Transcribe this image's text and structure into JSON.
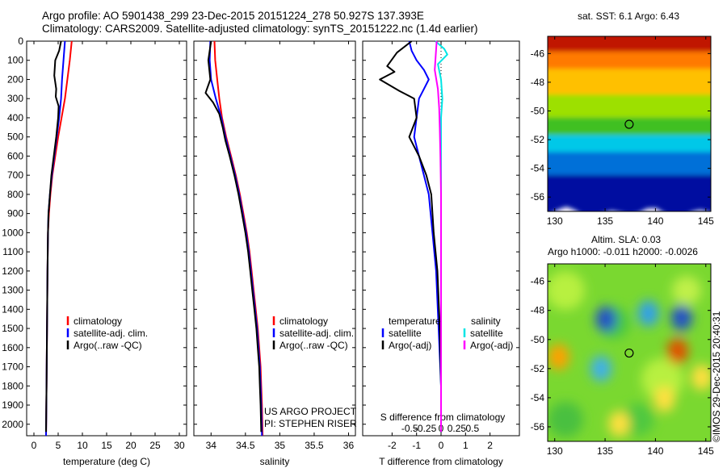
{
  "header": {
    "title_line1": "Argo profile: AO 5901438_299 23-Dec-2015 20151224_278 50.927S 137.393E",
    "title_line2": "Climatology: CARS2009. Satellite-adjusted climatology: synTS_20151222.nc (1.4d earlier)"
  },
  "colors": {
    "climatology": "#ff0000",
    "satellite": "#0000ff",
    "argo": "#000000",
    "salinity_satellite": "#00e5e5",
    "salinity_argo": "#ff00ff"
  },
  "credits": {
    "project": "US ARGO PROJECT",
    "pi": "PI: STEPHEN RISER",
    "stamp": "©IMOS 29-Dec-2015 20:40:31"
  },
  "chart_data": [
    {
      "type": "line",
      "name": "temperature-profile",
      "xlabel": "temperature (deg C)",
      "ylabel": "",
      "xlim": [
        -1.5,
        31.5
      ],
      "ylim": [
        2060,
        0
      ],
      "xticks": [
        0,
        5,
        10,
        15,
        20,
        25,
        30
      ],
      "yticks": [
        0,
        100,
        200,
        300,
        400,
        500,
        600,
        700,
        800,
        900,
        1000,
        1100,
        1200,
        1300,
        1400,
        1500,
        1600,
        1700,
        1800,
        1900,
        2000
      ],
      "legend": {
        "placement": "lower-right",
        "entries": [
          "climatology",
          "satellite-adj. clim.",
          "Argo(..raw -QC)"
        ]
      },
      "series": [
        {
          "name": "climatology",
          "color_key": "climatology",
          "points": [
            [
              7.8,
              0
            ],
            [
              7.4,
              100
            ],
            [
              6.9,
              200
            ],
            [
              6.4,
              300
            ],
            [
              5.7,
              400
            ],
            [
              5.0,
              500
            ],
            [
              4.4,
              600
            ],
            [
              3.8,
              700
            ],
            [
              3.4,
              800
            ],
            [
              3.1,
              900
            ],
            [
              2.9,
              1000
            ],
            [
              2.8,
              1200
            ],
            [
              2.7,
              1500
            ],
            [
              2.6,
              1800
            ],
            [
              2.5,
              2060
            ]
          ]
        },
        {
          "name": "satellite-adj. clim.",
          "color_key": "satellite",
          "points": [
            [
              6.4,
              0
            ],
            [
              6.1,
              100
            ],
            [
              5.8,
              200
            ],
            [
              5.6,
              300
            ],
            [
              5.2,
              400
            ],
            [
              4.7,
              500
            ],
            [
              4.2,
              600
            ],
            [
              3.7,
              700
            ],
            [
              3.3,
              800
            ],
            [
              3.0,
              900
            ],
            [
              2.9,
              1000
            ],
            [
              2.8,
              1200
            ],
            [
              2.7,
              1500
            ],
            [
              2.6,
              1800
            ],
            [
              2.5,
              2060
            ]
          ]
        },
        {
          "name": "Argo(..raw -QC)",
          "color_key": "argo",
          "points": [
            [
              5.6,
              0
            ],
            [
              5.2,
              50
            ],
            [
              4.4,
              100
            ],
            [
              4.2,
              180
            ],
            [
              4.6,
              250
            ],
            [
              4.5,
              290
            ],
            [
              5.1,
              340
            ],
            [
              5.0,
              400
            ],
            [
              4.6,
              500
            ],
            [
              4.1,
              600
            ],
            [
              3.6,
              700
            ],
            [
              3.3,
              800
            ],
            [
              3.0,
              900
            ],
            [
              2.9,
              1000
            ],
            [
              2.8,
              1200
            ],
            [
              2.7,
              1500
            ],
            [
              2.6,
              1800
            ],
            [
              2.5,
              2040
            ]
          ]
        }
      ]
    },
    {
      "type": "line",
      "name": "salinity-profile",
      "xlabel": "salinity",
      "ylabel": "",
      "xlim": [
        33.75,
        36.1
      ],
      "ylim": [
        2060,
        0
      ],
      "xticks": [
        34,
        34.5,
        35,
        35.5,
        36
      ],
      "legend": {
        "placement": "lower-right",
        "entries": [
          "climatology",
          "satellite-adj. clim.",
          "Argo(..raw -QC)"
        ]
      },
      "series": [
        {
          "name": "climatology",
          "color_key": "climatology",
          "points": [
            [
              34.05,
              0
            ],
            [
              34.06,
              100
            ],
            [
              34.09,
              200
            ],
            [
              34.12,
              300
            ],
            [
              34.16,
              400
            ],
            [
              34.22,
              500
            ],
            [
              34.29,
              600
            ],
            [
              34.36,
              700
            ],
            [
              34.42,
              800
            ],
            [
              34.47,
              900
            ],
            [
              34.52,
              1000
            ],
            [
              34.56,
              1100
            ],
            [
              34.59,
              1200
            ],
            [
              34.62,
              1300
            ],
            [
              34.65,
              1400
            ],
            [
              34.68,
              1500
            ],
            [
              34.7,
              1600
            ],
            [
              34.72,
              1700
            ],
            [
              34.73,
              1800
            ],
            [
              34.74,
              1900
            ],
            [
              34.75,
              2060
            ]
          ]
        },
        {
          "name": "satellite-adj. clim.",
          "color_key": "satellite",
          "points": [
            [
              33.99,
              0
            ],
            [
              33.98,
              100
            ],
            [
              34.0,
              200
            ],
            [
              34.07,
              300
            ],
            [
              34.15,
              400
            ],
            [
              34.21,
              500
            ],
            [
              34.28,
              600
            ],
            [
              34.35,
              700
            ],
            [
              34.41,
              800
            ],
            [
              34.46,
              900
            ],
            [
              34.51,
              1000
            ],
            [
              34.55,
              1100
            ],
            [
              34.58,
              1200
            ],
            [
              34.61,
              1300
            ],
            [
              34.64,
              1400
            ],
            [
              34.67,
              1500
            ],
            [
              34.69,
              1600
            ],
            [
              34.71,
              1700
            ],
            [
              34.72,
              1800
            ],
            [
              34.73,
              1900
            ],
            [
              34.74,
              2060
            ]
          ]
        },
        {
          "name": "Argo(..raw -QC)",
          "color_key": "argo",
          "points": [
            [
              34.0,
              0
            ],
            [
              33.96,
              100
            ],
            [
              33.99,
              200
            ],
            [
              33.92,
              270
            ],
            [
              34.03,
              320
            ],
            [
              34.12,
              380
            ],
            [
              34.17,
              450
            ],
            [
              34.21,
              520
            ],
            [
              34.27,
              600
            ],
            [
              34.34,
              700
            ],
            [
              34.4,
              800
            ],
            [
              34.45,
              900
            ],
            [
              34.5,
              1000
            ],
            [
              34.54,
              1100
            ],
            [
              34.57,
              1200
            ],
            [
              34.6,
              1300
            ],
            [
              34.63,
              1400
            ],
            [
              34.66,
              1500
            ],
            [
              34.68,
              1600
            ],
            [
              34.7,
              1700
            ],
            [
              34.71,
              1800
            ],
            [
              34.72,
              1900
            ],
            [
              34.73,
              2040
            ]
          ]
        }
      ]
    },
    {
      "type": "line",
      "name": "difference-profile",
      "xlabel": "T difference from climatology",
      "xlabel_top": "S difference from climatology",
      "ylabel": "",
      "xlim": [
        -3.2,
        3.2
      ],
      "ylim": [
        2060,
        0
      ],
      "xticks": [
        -2,
        -1,
        0,
        1,
        2
      ],
      "xticks_top": [
        -0.5,
        -0.25,
        0,
        0.25,
        0.5
      ],
      "xtick_labels_top": [
        "-0.5",
        "-0.25",
        "0",
        "0.25",
        "0.5"
      ],
      "legend": {
        "placement": "bottom",
        "groups": [
          {
            "title": "temperature",
            "entries": [
              "satellite",
              "Argo(-adj)"
            ]
          },
          {
            "title": "salinity",
            "entries": [
              "satellite",
              "Argo(-adj)"
            ]
          }
        ]
      },
      "series": [
        {
          "name": "temperature satellite",
          "color_key": "satellite",
          "points": [
            [
              -1.3,
              0
            ],
            [
              -1.2,
              50
            ],
            [
              -1.0,
              100
            ],
            [
              -0.7,
              150
            ],
            [
              -0.5,
              200
            ],
            [
              -0.7,
              250
            ],
            [
              -0.9,
              300
            ],
            [
              -1.0,
              400
            ],
            [
              -1.1,
              500
            ],
            [
              -0.9,
              600
            ],
            [
              -0.7,
              700
            ],
            [
              -0.5,
              800
            ],
            [
              -0.35,
              1000
            ],
            [
              -0.2,
              1200
            ],
            [
              -0.1,
              1500
            ],
            [
              0,
              1800
            ],
            [
              0,
              2040
            ]
          ]
        },
        {
          "name": "temperature Argo(-adj)",
          "color_key": "argo",
          "points": [
            [
              -1.2,
              0
            ],
            [
              -1.8,
              60
            ],
            [
              -2.2,
              130
            ],
            [
              -1.9,
              160
            ],
            [
              -2.5,
              200
            ],
            [
              -1.7,
              260
            ],
            [
              -1.1,
              300
            ],
            [
              -1.0,
              400
            ],
            [
              -1.3,
              500
            ],
            [
              -0.9,
              600
            ],
            [
              -0.6,
              700
            ],
            [
              -0.4,
              800
            ],
            [
              -0.3,
              1000
            ],
            [
              -0.15,
              1200
            ],
            [
              -0.05,
              1500
            ],
            [
              0,
              1800
            ],
            [
              0,
              2040
            ]
          ]
        },
        {
          "name": "salinity satellite",
          "color_key": "salinity_satellite",
          "points": [
            [
              -0.09,
              0
            ],
            [
              0.05,
              40
            ],
            [
              0.1,
              70
            ],
            [
              -0.05,
              120
            ],
            [
              0,
              200
            ],
            [
              0.02,
              300
            ],
            [
              0,
              400
            ],
            [
              0,
              500
            ],
            [
              0,
              700
            ],
            [
              0,
              1000
            ],
            [
              0,
              1500
            ],
            [
              0,
              2040
            ]
          ]
        },
        {
          "name": "salinity Argo(-adj)",
          "color_key": "salinity_argo",
          "points": [
            [
              -0.07,
              0
            ],
            [
              -0.09,
              100
            ],
            [
              -0.1,
              150
            ],
            [
              -0.05,
              250
            ],
            [
              -0.03,
              350
            ],
            [
              -0.02,
              450
            ],
            [
              -0.01,
              600
            ],
            [
              0,
              800
            ],
            [
              0,
              1000
            ],
            [
              0,
              1500
            ],
            [
              0,
              2040
            ]
          ]
        }
      ]
    },
    {
      "type": "heatmap",
      "name": "sst-map",
      "title": "sat. SST: 6.1 Argo: 6.43",
      "xlim": [
        129.3,
        145.5
      ],
      "ylim": [
        -57,
        -44.8
      ],
      "xticks": [
        130,
        135,
        140,
        145
      ],
      "yticks": [
        -46,
        -48,
        -50,
        -52,
        -54,
        -56
      ],
      "argo_position": {
        "lon": 137.39,
        "lat": -50.93
      },
      "color_bands": [
        {
          "lat_top": -44.8,
          "color": "#c01800"
        },
        {
          "lat_top": -46.2,
          "color": "#ff7a00"
        },
        {
          "lat_top": -47.4,
          "color": "#ffc000"
        },
        {
          "lat_top": -49.2,
          "color": "#9de000"
        },
        {
          "lat_top": -50.8,
          "color": "#40c020"
        },
        {
          "lat_top": -52.0,
          "color": "#00c8e8"
        },
        {
          "lat_top": -53.2,
          "color": "#0070d8"
        },
        {
          "lat_top": -54.8,
          "color": "#0010a0"
        }
      ]
    },
    {
      "type": "heatmap",
      "name": "sla-map",
      "title": "Altim. SLA: 0.03",
      "subtitle": "Argo h1000: -0.011 h2000: -0.0026",
      "xlim": [
        129.3,
        145.5
      ],
      "ylim": [
        -57,
        -44.8
      ],
      "xticks": [
        130,
        135,
        140,
        145
      ],
      "yticks": [
        -46,
        -48,
        -50,
        -52,
        -54,
        -56
      ],
      "argo_position": {
        "lon": 137.39,
        "lat": -50.93
      },
      "features": [
        {
          "kind": "low",
          "lon": 135.1,
          "lat": -48.6,
          "color": "#2050c8"
        },
        {
          "kind": "low",
          "lon": 142.6,
          "lat": -48.5,
          "color": "#2050c8"
        },
        {
          "kind": "low",
          "lon": 139.3,
          "lat": -48.2,
          "color": "#30a0e8"
        },
        {
          "kind": "low",
          "lon": 134.6,
          "lat": -52.0,
          "color": "#40b0e8"
        },
        {
          "kind": "high",
          "lon": 142.2,
          "lat": -50.8,
          "color": "#e05000"
        },
        {
          "kind": "high",
          "lon": 130.4,
          "lat": -51.2,
          "color": "#ffa000"
        },
        {
          "kind": "high",
          "lon": 140.9,
          "lat": -54.1,
          "color": "#ffe040"
        },
        {
          "kind": "high",
          "lon": 136.4,
          "lat": -55.8,
          "color": "#ffe040"
        },
        {
          "kind": "high",
          "lon": 144.6,
          "lat": -52.6,
          "color": "#ffe040"
        }
      ]
    }
  ]
}
